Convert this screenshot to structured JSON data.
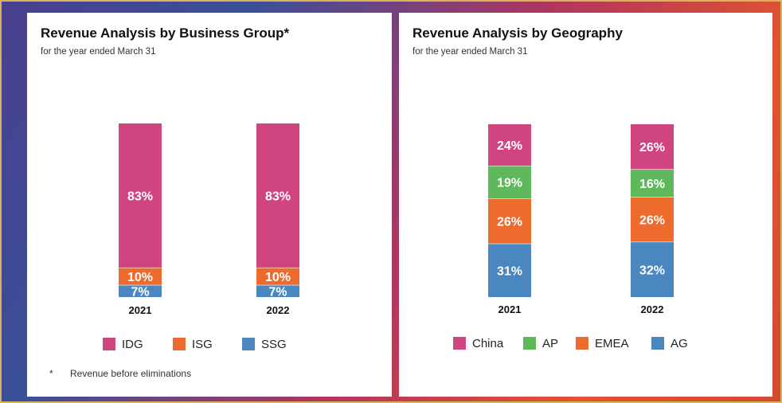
{
  "colors": {
    "IDG": "#d0447f",
    "ISG": "#ec6b2d",
    "SSG": "#4a86c0",
    "China": "#d0447f",
    "AP": "#5fb85c",
    "EMEA": "#ec6b2d",
    "AG": "#4a86c0"
  },
  "chart_data": [
    {
      "type": "bar",
      "stacked": true,
      "title": "Revenue Analysis by Business Group*",
      "subtitle": "for the year ended March 31",
      "categories": [
        "2021",
        "2022"
      ],
      "series": [
        {
          "name": "SSG",
          "values": [
            7,
            7
          ],
          "labels": [
            "7%",
            "7%"
          ]
        },
        {
          "name": "ISG",
          "values": [
            10,
            10
          ],
          "labels": [
            "10%",
            "10%"
          ]
        },
        {
          "name": "IDG",
          "values": [
            83,
            83
          ],
          "labels": [
            "83%",
            "83%"
          ]
        }
      ],
      "legend": [
        "IDG",
        "ISG",
        "SSG"
      ],
      "legend_position": "bottom",
      "footnote_marker": "*",
      "footnote": "Revenue before eliminations",
      "ylim": [
        0,
        100
      ],
      "grid": false
    },
    {
      "type": "bar",
      "stacked": true,
      "title": "Revenue Analysis by Geography",
      "subtitle": "for the year ended March 31",
      "categories": [
        "2021",
        "2022"
      ],
      "series": [
        {
          "name": "AG",
          "values": [
            31,
            32
          ],
          "labels": [
            "31%",
            "32%"
          ]
        },
        {
          "name": "EMEA",
          "values": [
            26,
            26
          ],
          "labels": [
            "26%",
            "26%"
          ]
        },
        {
          "name": "AP",
          "values": [
            19,
            16
          ],
          "labels": [
            "19%",
            "16%"
          ]
        },
        {
          "name": "China",
          "values": [
            24,
            26
          ],
          "labels": [
            "24%",
            "26%"
          ]
        }
      ],
      "legend": [
        "China",
        "AP",
        "EMEA",
        "AG"
      ],
      "legend_position": "bottom",
      "ylim": [
        0,
        100
      ],
      "grid": false
    }
  ]
}
